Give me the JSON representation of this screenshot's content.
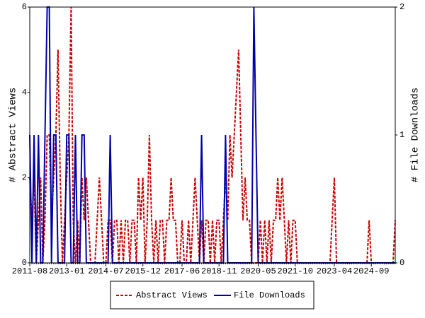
{
  "chart_data": {
    "type": "line",
    "categories": [
      "2011-08",
      null,
      null,
      null,
      null,
      null,
      null,
      null,
      null,
      null,
      null,
      null,
      null,
      null,
      null,
      null,
      null,
      "2013-01",
      null,
      null,
      null,
      null,
      null,
      null,
      null,
      null,
      null,
      null,
      null,
      null,
      null,
      null,
      null,
      null,
      null,
      "2014-07",
      null,
      null,
      null,
      null,
      null,
      null,
      null,
      null,
      null,
      null,
      null,
      null,
      null,
      null,
      null,
      null,
      "2015-12",
      null,
      null,
      null,
      null,
      null,
      null,
      null,
      null,
      null,
      null,
      null,
      null,
      null,
      null,
      null,
      null,
      null,
      "2017-06",
      null,
      null,
      null,
      null,
      null,
      null,
      null,
      null,
      null,
      null,
      null,
      null,
      null,
      null,
      null,
      null,
      "2018-11",
      null,
      null,
      null,
      null,
      null,
      null,
      null,
      null,
      null,
      null,
      null,
      null,
      null,
      null,
      null,
      null,
      null,
      "2020-05",
      null,
      null,
      null,
      null,
      null,
      null,
      null,
      null,
      null,
      null,
      null,
      null,
      null,
      null,
      null,
      null,
      "2021-10",
      null,
      null,
      null,
      null,
      null,
      null,
      null,
      null,
      null,
      null,
      null,
      null,
      null,
      null,
      null,
      null,
      null,
      "2023-04",
      null,
      null,
      null,
      null,
      null,
      null,
      null,
      null,
      null,
      null,
      null,
      null,
      null,
      null,
      null,
      null,
      "2024-09",
      null,
      null,
      null,
      null,
      null,
      null,
      null,
      null,
      null,
      null,
      null
    ],
    "series": [
      {
        "name": "Abstract Views",
        "color": "#cc0000",
        "axis": "y",
        "values": [
          2,
          1,
          2,
          0,
          1,
          2,
          0,
          1,
          3,
          3,
          1,
          2,
          3,
          5,
          2,
          0,
          1,
          2,
          3,
          6,
          1,
          0,
          1,
          0,
          2,
          1,
          2,
          1,
          0,
          0,
          0,
          1,
          2,
          1,
          0,
          0,
          1,
          1,
          0,
          1,
          1,
          0,
          1,
          0,
          1,
          1,
          0,
          1,
          1,
          0,
          2,
          1,
          2,
          0,
          1,
          3,
          1,
          0,
          1,
          0,
          1,
          1,
          0,
          1,
          1,
          2,
          1,
          1,
          0,
          0,
          1,
          0,
          0,
          1,
          0,
          1,
          2,
          1,
          0,
          1,
          0,
          1,
          1,
          0,
          1,
          0,
          1,
          1,
          0,
          1,
          2,
          1,
          3,
          2,
          3,
          4,
          5,
          3,
          1,
          2,
          1,
          1,
          0,
          0,
          0,
          0,
          1,
          0,
          1,
          0,
          1,
          0,
          1,
          1,
          2,
          1,
          2,
          1,
          0,
          1,
          0,
          1,
          1,
          0,
          0,
          0,
          0,
          0,
          0,
          0,
          0,
          0,
          0,
          0,
          0,
          0,
          0,
          0,
          0,
          1,
          2,
          0,
          0,
          0,
          0,
          0,
          0,
          0,
          0,
          0,
          0,
          0,
          0,
          0,
          0,
          0,
          1,
          0,
          0,
          0,
          0,
          0,
          0,
          0,
          0,
          0,
          0,
          0,
          1
        ]
      },
      {
        "name": "File Downloads",
        "color": "#0000aa",
        "axis": "y2",
        "values": [
          1,
          0,
          1,
          0,
          1,
          0,
          0,
          1,
          2,
          2,
          0,
          1,
          1,
          0,
          0,
          0,
          0,
          1,
          1,
          0,
          0,
          1,
          0,
          0,
          1,
          1,
          0,
          0,
          0,
          0,
          0,
          0,
          0,
          0,
          0,
          0,
          0,
          1,
          0,
          0,
          0,
          0,
          0,
          0,
          0,
          0,
          0,
          0,
          0,
          0,
          0,
          0,
          0,
          0,
          0,
          0,
          0,
          0,
          0,
          0,
          0,
          0,
          0,
          0,
          0,
          0,
          0,
          0,
          0,
          0,
          0,
          0,
          0,
          0,
          0,
          0,
          0,
          0,
          0,
          1,
          0,
          0,
          0,
          0,
          0,
          0,
          0,
          0,
          0,
          0,
          1,
          0,
          0,
          0,
          0,
          0,
          0,
          0,
          0,
          0,
          0,
          0,
          0,
          2,
          1,
          0,
          0,
          0,
          0,
          0,
          0,
          0,
          0,
          0,
          0,
          0,
          0,
          0,
          0,
          0,
          0,
          0,
          0,
          0,
          0,
          0,
          0,
          0,
          0,
          0,
          0,
          0,
          0,
          0,
          0,
          0,
          0,
          0,
          0,
          0,
          0,
          0,
          0,
          0,
          0,
          0,
          0,
          0,
          0,
          0,
          0,
          0,
          0,
          0,
          0,
          0,
          0,
          0,
          0,
          0,
          0,
          0,
          0,
          0,
          0,
          0,
          0,
          0,
          0
        ]
      }
    ],
    "ylabel": "# Abstract Views",
    "y2label": "# File Downloads",
    "ylim": [
      0,
      6
    ],
    "yticks": [
      0,
      2,
      4,
      6
    ],
    "y2lim": [
      0,
      2
    ],
    "y2ticks": [
      0,
      1,
      2
    ],
    "legend": "bottom"
  }
}
